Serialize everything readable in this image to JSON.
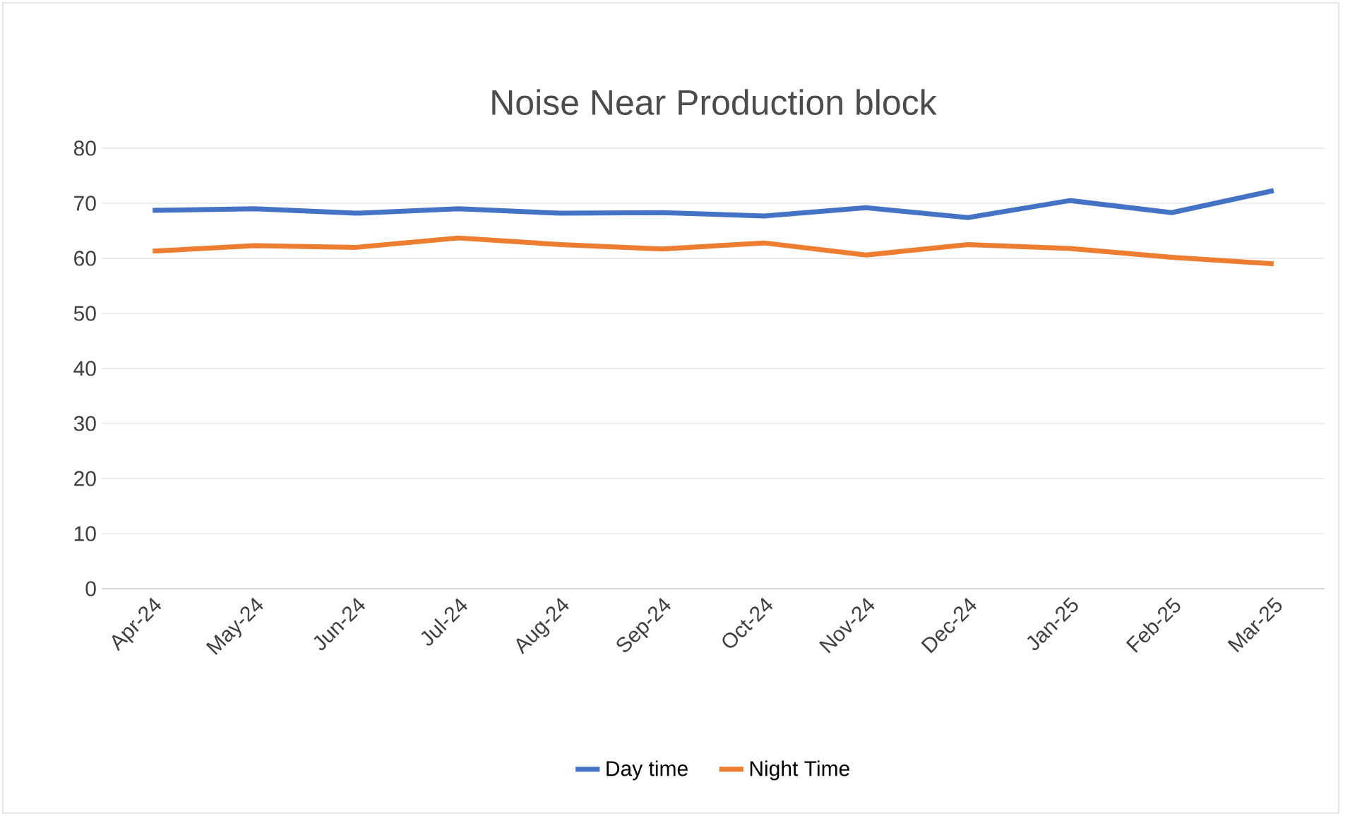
{
  "chart_data": {
    "type": "line",
    "title": "Noise Near Production block",
    "categories": [
      "Apr-24",
      "May-24",
      "Jun-24",
      "Jul-24",
      "Aug-24",
      "Sep-24",
      "Oct-24",
      "Nov-24",
      "Dec-24",
      "Jan-25",
      "Feb-25",
      "Mar-25"
    ],
    "series": [
      {
        "name": "Day time",
        "color": "#4472c4",
        "values": [
          68.7,
          69.0,
          68.2,
          69.0,
          68.2,
          68.3,
          67.7,
          69.2,
          67.4,
          70.5,
          68.3,
          72.3
        ]
      },
      {
        "name": "Night Time",
        "color": "#ed7d31",
        "values": [
          61.3,
          62.3,
          62.0,
          63.7,
          62.5,
          61.7,
          62.8,
          60.6,
          62.5,
          61.8,
          60.2,
          59.0
        ]
      }
    ],
    "ylim": [
      0,
      80
    ],
    "yticks": [
      0,
      10,
      20,
      30,
      40,
      50,
      60,
      70,
      80
    ],
    "grid": "y",
    "legend": "bottom",
    "marker": "none",
    "line_style": "solid"
  }
}
